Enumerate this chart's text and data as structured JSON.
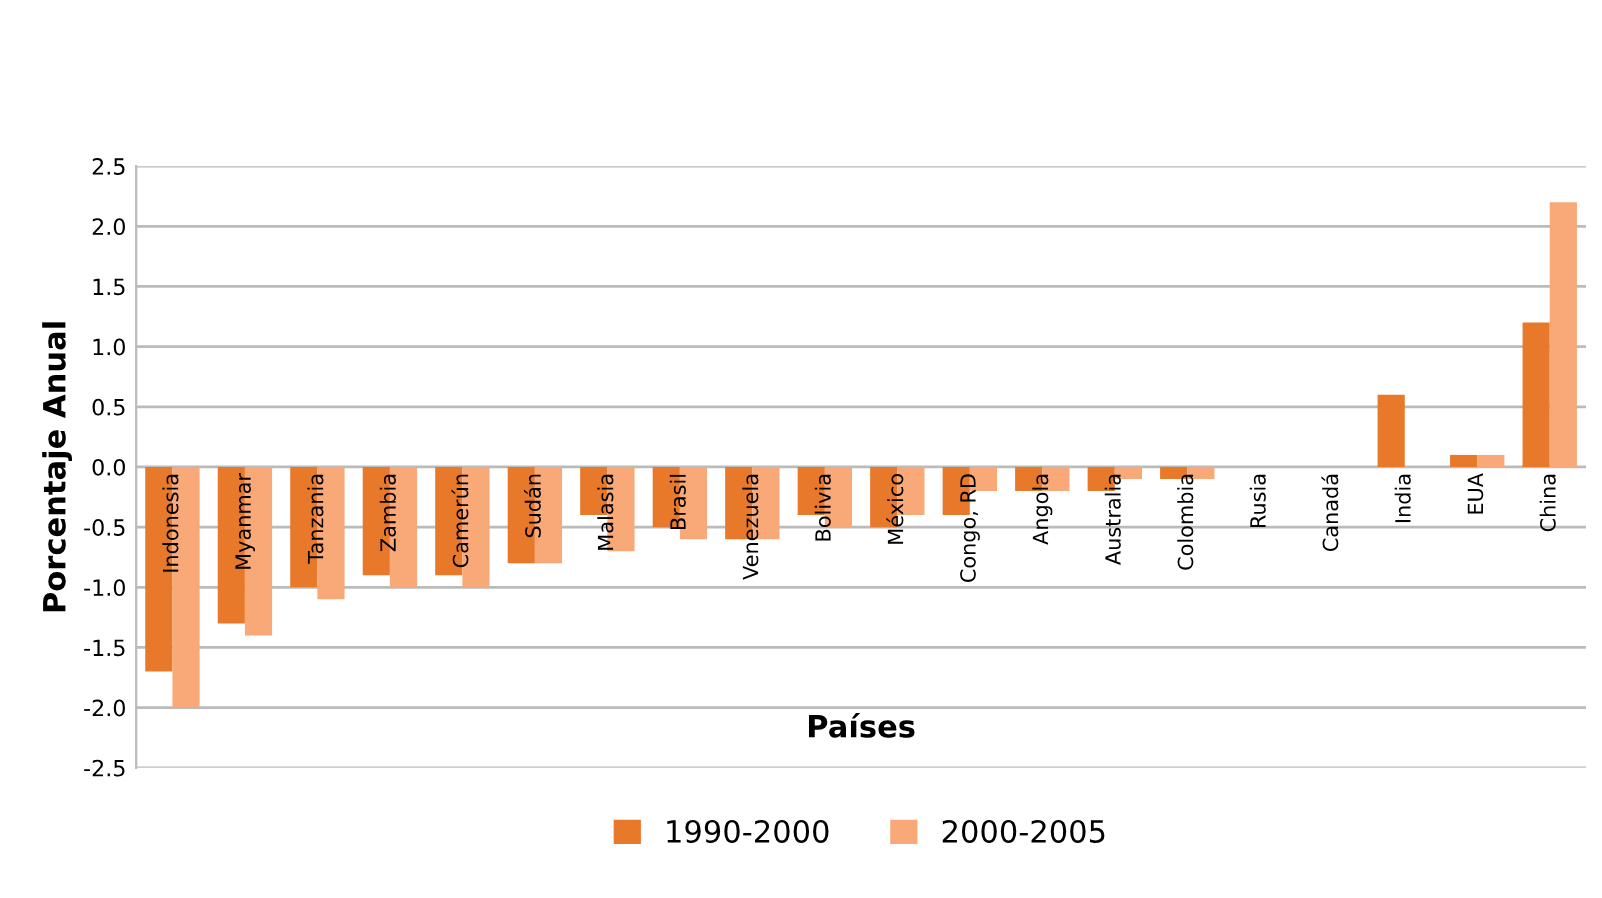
{
  "chart_data": {
    "type": "bar",
    "xlabel": "Países",
    "ylabel": "Porcentaje Anual",
    "categories": [
      "Indonesia",
      "Myanmar",
      "Tanzania",
      "Zambia",
      "Camerún",
      "Sudán",
      "Malasia",
      "Brasil",
      "Venezuela",
      "Bolivia",
      "México",
      "Congo, RD",
      "Angola",
      "Australia",
      "Colombia",
      "Rusia",
      "Canadá",
      "India",
      "EUA",
      "China"
    ],
    "series": [
      {
        "name": "1990-2000",
        "color": "#e8782a",
        "values": [
          -1.7,
          -1.3,
          -1.0,
          -0.9,
          -0.9,
          -0.8,
          -0.4,
          -0.5,
          -0.6,
          -0.4,
          -0.5,
          -0.4,
          -0.2,
          -0.2,
          -0.1,
          0,
          0,
          0.6,
          0.1,
          1.2
        ]
      },
      {
        "name": "2000-2005",
        "color": "#f9a877",
        "values": [
          -2.0,
          -1.4,
          -1.1,
          -1.0,
          -1.0,
          -0.8,
          -0.7,
          -0.6,
          -0.6,
          -0.5,
          -0.4,
          -0.2,
          -0.2,
          -0.1,
          -0.1,
          0,
          0,
          0,
          0.1,
          2.2
        ]
      }
    ],
    "ylim": [
      -2.5,
      2.5
    ],
    "yticks": [
      {
        "value": -2.5,
        "label": "-2.5"
      },
      {
        "value": -2,
        "label": "-2.0"
      },
      {
        "value": -1.5,
        "label": "-1.5"
      },
      {
        "value": -1,
        "label": "-1.0"
      },
      {
        "value": -0.5,
        "label": "-0.5"
      },
      {
        "value": 0,
        "label": "0.0"
      },
      {
        "value": 0.5,
        "label": "0.5"
      },
      {
        "value": 1,
        "label": "1.0"
      },
      {
        "value": 1.5,
        "label": "1.5"
      },
      {
        "value": 2,
        "label": "2.0"
      },
      {
        "value": 2.5,
        "label": "2.5"
      }
    ],
    "grid": "y",
    "legend": "bottom"
  }
}
